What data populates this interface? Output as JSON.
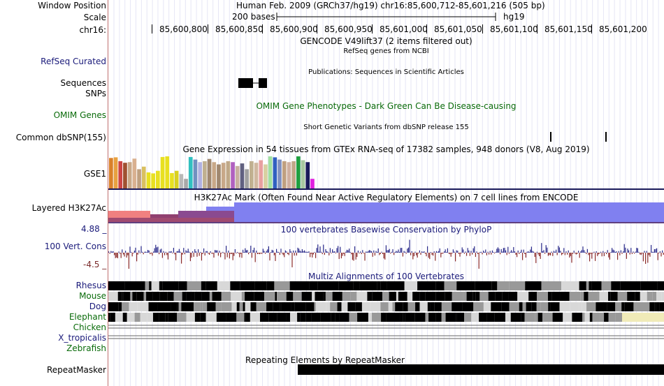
{
  "header": {
    "window_position_label": "Window Position",
    "window_position_value": "Human Feb. 2009 (GRCh37/hg19)   chr16:85,600,712-85,601,216 (505 bp)",
    "scale_label": "Scale",
    "scale_text": "200 bases",
    "assembly": "hg19",
    "chrom_label": "chr16:",
    "ticks": [
      "85,600,800",
      "85,600,850",
      "85,600,900",
      "85,600,950",
      "85,601,000",
      "85,601,050",
      "85,601,100",
      "85,601,150",
      "85,601,200"
    ]
  },
  "tracks": {
    "gencode_title": "GENCODE V49lift37 (2 items filtered out)",
    "refseq_title": "RefSeq genes from NCBI",
    "refseq_label": "RefSeq Curated",
    "publications_title": "Publications: Sequences in Scientific Articles",
    "sequences_label": "Sequences",
    "snps_label": "SNPs",
    "omim_title": "OMIM Gene Phenotypes - Dark Green Can Be Disease-causing",
    "omim_label": "OMIM Genes",
    "dbsnp_title": "Short Genetic Variants from dbSNP release 155",
    "dbsnp_label": "Common dbSNP(155)",
    "gtex_title": "Gene Expression in 54 tissues from GTEx RNA-seq of 17382 samples, 948 donors (V8, Aug 2019)",
    "gtex_label": "GSE1",
    "h3k27ac_title": "H3K27Ac Mark (Often Found Near Active Regulatory Elements) on 7 cell lines from ENCODE",
    "h3k27ac_label": "Layered H3K27Ac",
    "phylop_max": "4.88 _",
    "phylop_min": "-4.5 _",
    "phylop_title": "100 vertebrates Basewise Conservation by PhyloP",
    "phylop_label": "100 Vert. Cons",
    "multiz_title": "Multiz Alignments of 100 Vertebrates",
    "species": [
      "Rhesus",
      "Mouse",
      "Dog",
      "Elephant",
      "Chicken",
      "X_tropicalis",
      "Zebrafish"
    ],
    "repeat_title": "Repeating Elements by RepeatMasker",
    "repeat_label": "RepeatMasker"
  },
  "colors": {
    "blue_label": "#1a1a7a",
    "green_label": "#0a6b0a",
    "h3k27ac_blue": "#8080f0",
    "phylop_pos": "#2a2a8a",
    "phylop_neg": "#8a2a2a"
  },
  "gtex_bar_colors": [
    "#d9802a",
    "#e8a040",
    "#cc4444",
    "#a05030",
    "#c8a888",
    "#d9b090",
    "#c0a080",
    "#d9c060",
    "#e8e020",
    "#e8e020",
    "#e8e020",
    "#e8e020",
    "#e8e020",
    "#e8e020",
    "#d9d020",
    "#b8b8b8",
    "#a8a8a8",
    "#30c0c0",
    "#7090c0",
    "#b0b0e0",
    "#c0b090",
    "#a08870",
    "#c8a888",
    "#a08870",
    "#c8a888",
    "#c0a888",
    "#b060c0",
    "#c8b0a0",
    "#606080",
    "#a0a0a0",
    "#c0b090",
    "#d0b8a0",
    "#e8a0a0",
    "#d8d0a0",
    "#a0e0a0",
    "#3060c0",
    "#8090c0",
    "#c0a080",
    "#d0b0a0",
    "#c0a888",
    "#20a040",
    "#a8c8a0",
    "#1a1a5a",
    "#e020e0"
  ],
  "gtex_bar_heights": [
    0.95,
    0.97,
    0.85,
    0.8,
    0.82,
    0.93,
    0.6,
    0.68,
    0.5,
    0.47,
    0.55,
    0.98,
    1.0,
    0.48,
    0.55,
    0.45,
    0.3,
    0.98,
    0.9,
    0.82,
    0.85,
    0.92,
    0.82,
    0.75,
    0.8,
    0.85,
    0.82,
    0.7,
    0.78,
    0.6,
    0.85,
    0.8,
    0.88,
    0.75,
    1.0,
    0.97,
    0.9,
    0.85,
    0.82,
    0.85,
    1.0,
    0.88,
    0.82,
    0.3
  ]
}
